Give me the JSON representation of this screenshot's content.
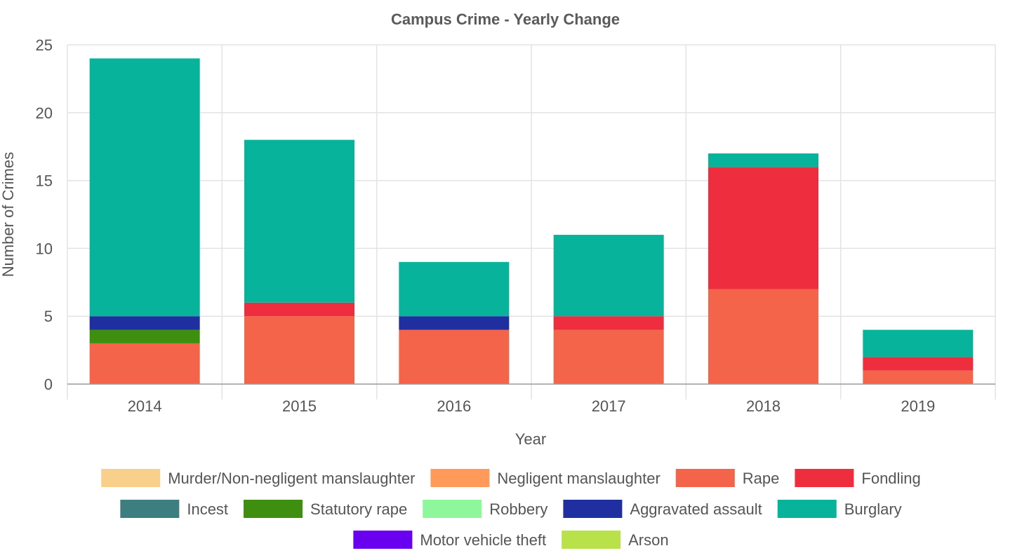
{
  "chart_data": {
    "type": "bar",
    "stacked": true,
    "title": "Campus Crime - Yearly Change",
    "xlabel": "Year",
    "ylabel": "Number of Crimes",
    "categories": [
      "2014",
      "2015",
      "2016",
      "2017",
      "2018",
      "2019"
    ],
    "ylim": [
      0,
      25
    ],
    "yticks": [
      0,
      5,
      10,
      15,
      20,
      25
    ],
    "grid": true,
    "legend_position": "bottom",
    "series": [
      {
        "name": "Murder/Non-negligent manslaughter",
        "color": "#f9d08b",
        "values": [
          0,
          0,
          0,
          0,
          0,
          0
        ]
      },
      {
        "name": "Negligent manslaughter",
        "color": "#ff9a5a",
        "values": [
          0,
          0,
          0,
          0,
          0,
          0
        ]
      },
      {
        "name": "Rape",
        "color": "#f4644b",
        "values": [
          3,
          5,
          4,
          4,
          7,
          1
        ]
      },
      {
        "name": "Fondling",
        "color": "#ee2e3e",
        "values": [
          0,
          1,
          0,
          1,
          9,
          1
        ]
      },
      {
        "name": "Incest",
        "color": "#3d7f80",
        "values": [
          0,
          0,
          0,
          0,
          0,
          0
        ]
      },
      {
        "name": "Statutory rape",
        "color": "#3e8e10",
        "values": [
          1,
          0,
          0,
          0,
          0,
          0
        ]
      },
      {
        "name": "Robbery",
        "color": "#8ef79b",
        "values": [
          0,
          0,
          0,
          0,
          0,
          0
        ]
      },
      {
        "name": "Aggravated assault",
        "color": "#1f2fa0",
        "values": [
          1,
          0,
          1,
          0,
          0,
          0
        ]
      },
      {
        "name": "Burglary",
        "color": "#07b39b",
        "values": [
          19,
          12,
          4,
          6,
          1,
          2
        ]
      },
      {
        "name": "Motor vehicle theft",
        "color": "#6a00f0",
        "values": [
          0,
          0,
          0,
          0,
          0,
          0
        ]
      },
      {
        "name": "Arson",
        "color": "#b9e24a",
        "values": [
          0,
          0,
          0,
          0,
          0,
          0
        ]
      }
    ]
  }
}
